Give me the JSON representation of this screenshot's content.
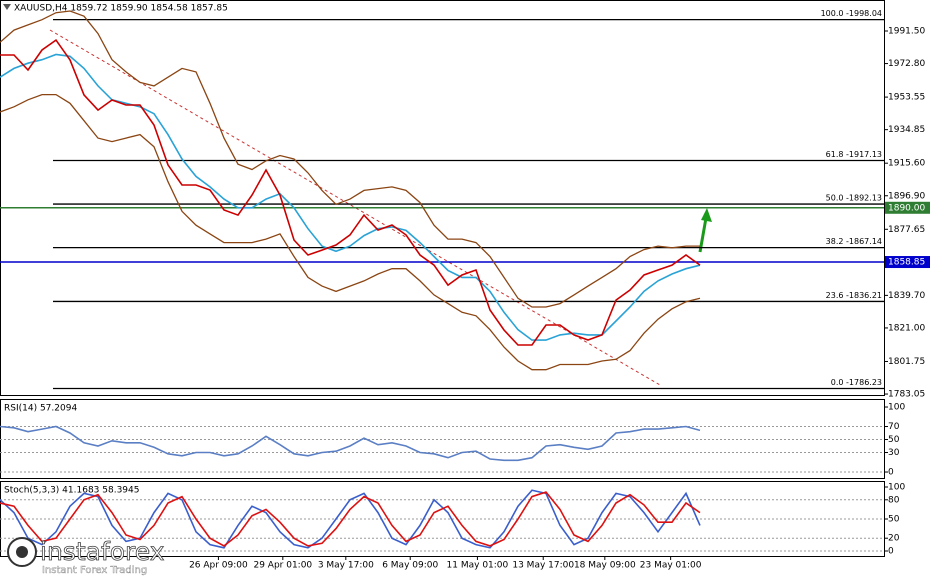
{
  "chart_data": [
    {
      "type": "line",
      "title": "XAUUSD,H4  1859.72 1859.90 1854.58 1857.85",
      "x": [
        0,
        1,
        2,
        3,
        4,
        5,
        6,
        7,
        8,
        9,
        10,
        11,
        12,
        13,
        14,
        15,
        16,
        17,
        18,
        19,
        20,
        21,
        22,
        23,
        24,
        25,
        26,
        27,
        28,
        29,
        30,
        31,
        32,
        33,
        34,
        35,
        36,
        37,
        38,
        39,
        40,
        41,
        42,
        43,
        44,
        45,
        46,
        47,
        48,
        49,
        50
      ],
      "xlim": [
        0,
        63.14
      ],
      "xticks": [
        {
          "value": 15.6,
          "label": "26 Apr 09:00"
        },
        {
          "value": 20.2,
          "label": "29 Apr 01:00"
        },
        {
          "value": 24.7,
          "label": "3 May 17:00"
        },
        {
          "value": 29.3,
          "label": "6 May 09:00"
        },
        {
          "value": 34.1,
          "label": "11 May 01:00"
        },
        {
          "value": 38.8,
          "label": "13 May 17:00"
        },
        {
          "value": 43.2,
          "label": "18 May 09:00"
        },
        {
          "value": 47.9,
          "label": "23 May 01:00"
        }
      ],
      "ylim": [
        1782.5,
        2009.3
      ],
      "yticks": [
        {
          "value": 1991.5,
          "label": "1991.50"
        },
        {
          "value": 1972.8,
          "label": "1972.80"
        },
        {
          "value": 1953.55,
          "label": "1953.55"
        },
        {
          "value": 1934.85,
          "label": "1934.85"
        },
        {
          "value": 1915.6,
          "label": "1915.60"
        },
        {
          "value": 1896.9,
          "label": "1896.90"
        },
        {
          "value": 1877.65,
          "label": "1877.65"
        },
        {
          "value": 1839.7,
          "label": "1839.70"
        },
        {
          "value": 1821,
          "label": "1821.00"
        },
        {
          "value": 1801.75,
          "label": "1801.75"
        },
        {
          "value": 1783.05,
          "label": "1783.05"
        }
      ],
      "series": [
        {
          "color": "#8b4513",
          "values": [
            1985,
            1992,
            1995,
            1998,
            2002,
            2003,
            2000,
            1990,
            1975,
            1968,
            1962,
            1960,
            1965,
            1970,
            1968,
            1950,
            1930,
            1915,
            1912,
            1917,
            1920,
            1918,
            1910,
            1900,
            1892,
            1895,
            1900,
            1901,
            1902,
            1900,
            1893,
            1880,
            1872,
            1872,
            1870,
            1862,
            1850,
            1838,
            1833,
            1833,
            1835,
            1840,
            1845,
            1850,
            1855,
            1862,
            1866,
            1868,
            1867,
            1868,
            1868
          ]
        },
        {
          "color": "#8b4513",
          "values": [
            1945,
            1948,
            1952,
            1955,
            1955,
            1950,
            1940,
            1930,
            1928,
            1930,
            1932,
            1925,
            1905,
            1888,
            1880,
            1875,
            1870,
            1870,
            1870,
            1872,
            1875,
            1862,
            1850,
            1845,
            1842,
            1845,
            1848,
            1852,
            1855,
            1855,
            1848,
            1840,
            1835,
            1830,
            1828,
            1820,
            1810,
            1802,
            1797,
            1797,
            1800,
            1800,
            1800,
            1802,
            1803,
            1808,
            1818,
            1826,
            1832,
            1836,
            1838
          ]
        },
        {
          "color": "#29a3d6",
          "values": [
            1965,
            1970,
            1973,
            1975,
            1978,
            1977,
            1970,
            1960,
            1952,
            1950,
            1948,
            1944,
            1932,
            1918,
            1908,
            1902,
            1895,
            1890,
            1890,
            1895,
            1898,
            1890,
            1878,
            1868,
            1865,
            1868,
            1874,
            1878,
            1879,
            1877,
            1870,
            1862,
            1854,
            1850,
            1850,
            1842,
            1830,
            1820,
            1814,
            1814,
            1817,
            1818,
            1817,
            1817,
            1825,
            1833,
            1842,
            1848,
            1852,
            1855,
            1857
          ]
        },
        {
          "color": "#cc0000",
          "values": [
            1977.7,
            1977.7,
            1969.1,
            1980.6,
            1986.3,
            1974.9,
            1954.8,
            1946.1,
            1951.9,
            1949.0,
            1949.0,
            1937.5,
            1914.6,
            1903.1,
            1903.1,
            1900.2,
            1888.7,
            1885.8,
            1897.3,
            1911.7,
            1897.3,
            1871.5,
            1862.9,
            1865.7,
            1868.6,
            1874.4,
            1885.8,
            1877.2,
            1880.1,
            1874.4,
            1862.9,
            1857.1,
            1845.6,
            1851.4,
            1854.3,
            1831.3,
            1819.8,
            1811.2,
            1811.2,
            1822.7,
            1822.7,
            1817.0,
            1814.1,
            1817.0,
            1837.0,
            1842.8,
            1851.4,
            1854.3,
            1857.1,
            1862.9,
            1857.1
          ]
        }
      ],
      "levels": [
        {
          "value": 1998.04,
          "label": "100.0 -1998.04"
        },
        {
          "value": 1917.13,
          "label": "61.8 -1917.13"
        },
        {
          "value": 1892.13,
          "label": "50.0 -1892.13"
        },
        {
          "value": 1867.14,
          "label": "38.2 -1867.14"
        },
        {
          "value": 1836.21,
          "label": "23.6 -1836.21"
        },
        {
          "value": 1786.23,
          "label": "0.0 -1786.23"
        }
      ],
      "price_lines": [
        {
          "value": 1890,
          "label": "1890.00",
          "color": "#2e7d32"
        },
        {
          "value": 1858.85,
          "label": "1858.85",
          "color": "#0000cc"
        }
      ]
    },
    {
      "type": "line",
      "title": "RSI(14) 57.2094",
      "ylim": [
        -9.2,
        110.8
      ],
      "yticks": [
        100,
        70,
        50,
        30,
        0
      ],
      "series": [
        {
          "color": "#5b7fc4",
          "values": [
            70,
            68,
            62,
            66,
            70,
            60,
            45,
            40,
            48,
            45,
            45,
            38,
            28,
            25,
            30,
            30,
            25,
            28,
            40,
            55,
            42,
            28,
            25,
            30,
            32,
            40,
            52,
            42,
            45,
            40,
            30,
            28,
            22,
            30,
            32,
            20,
            18,
            18,
            22,
            40,
            42,
            38,
            35,
            40,
            60,
            62,
            66,
            66,
            68,
            70,
            64
          ]
        }
      ]
    },
    {
      "type": "line",
      "title": "Stoch(5,3,3) 41.1683 58.3945",
      "ylim": [
        -7.8,
        107.8
      ],
      "yticks": [
        100,
        80,
        50,
        20,
        0
      ],
      "series": [
        {
          "color": "#3a5fcd",
          "values": [
            80,
            60,
            20,
            10,
            30,
            70,
            90,
            85,
            40,
            15,
            20,
            60,
            90,
            80,
            30,
            10,
            5,
            40,
            70,
            60,
            30,
            10,
            5,
            20,
            50,
            80,
            90,
            60,
            20,
            10,
            40,
            80,
            60,
            20,
            10,
            5,
            30,
            70,
            95,
            90,
            40,
            10,
            20,
            60,
            90,
            85,
            60,
            30,
            60,
            90,
            40
          ]
        },
        {
          "color": "#dd1111",
          "values": [
            75,
            70,
            40,
            15,
            20,
            50,
            80,
            88,
            60,
            25,
            18,
            40,
            75,
            85,
            50,
            20,
            8,
            25,
            55,
            65,
            45,
            20,
            8,
            12,
            35,
            65,
            85,
            75,
            40,
            15,
            25,
            60,
            70,
            40,
            15,
            8,
            18,
            50,
            85,
            92,
            65,
            25,
            15,
            40,
            75,
            88,
            72,
            45,
            45,
            75,
            60
          ]
        }
      ]
    }
  ],
  "watermark": {
    "brand": "instaforex",
    "tagline": "Instant Forex Trading"
  }
}
